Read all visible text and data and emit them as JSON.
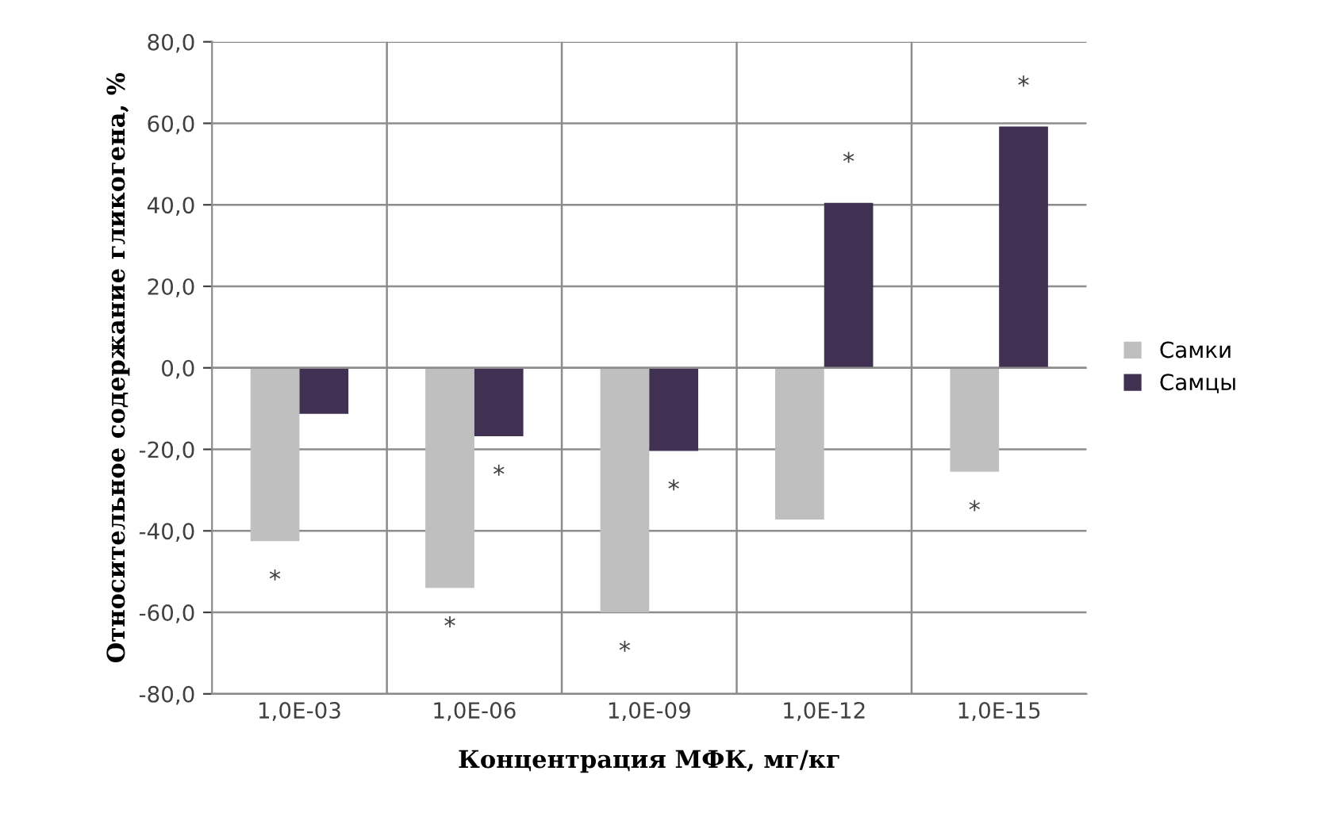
{
  "chart_data": {
    "type": "bar",
    "categories": [
      "1,0E-03",
      "1,0E-06",
      "1,0E-09",
      "1,0E-12",
      "1,0E-15"
    ],
    "series": [
      {
        "name": "Самки",
        "color": "#bfbfbf",
        "values": [
          -42.5,
          -54.0,
          -60.0,
          -37.2,
          -25.5
        ]
      },
      {
        "name": "Самцы",
        "color": "#403152",
        "values": [
          -11.3,
          -16.8,
          -20.4,
          40.5,
          59.2
        ]
      }
    ],
    "ylim": [
      -80,
      80
    ],
    "yticks": [
      {
        "value": -80,
        "label": "-80,0"
      },
      {
        "value": -60,
        "label": "-60,0"
      },
      {
        "value": -40,
        "label": "-40,0"
      },
      {
        "value": -20,
        "label": "-20,0"
      },
      {
        "value": 0,
        "label": "0,0"
      },
      {
        "value": 20,
        "label": "20,0"
      },
      {
        "value": 40,
        "label": "40,0"
      },
      {
        "value": 60,
        "label": "60,0"
      },
      {
        "value": 80,
        "label": "80,0"
      }
    ],
    "xlabel": "Концентрация МФК, мг/кг",
    "ylabel": "Относительное содержание гликогена, %",
    "grid": true,
    "legend": "right",
    "annotations": [
      {
        "text": "*",
        "x": "1,0E-03",
        "y": -42.5
      },
      {
        "text": "*",
        "x": "1,0E-06",
        "y": -54.0
      },
      {
        "text": "*",
        "x": "1,0E-06",
        "y": -16.8
      },
      {
        "text": "*",
        "x": "1,0E-09",
        "y": -60.0
      },
      {
        "text": "*",
        "x": "1,0E-09",
        "y": -20.4
      },
      {
        "text": "*",
        "x": "1,0E-12",
        "y": 40.5
      },
      {
        "text": "*",
        "x": "1,0E-15",
        "y": -25.5
      },
      {
        "text": "*",
        "x": "1,0E-15",
        "y": 59.2
      }
    ]
  }
}
